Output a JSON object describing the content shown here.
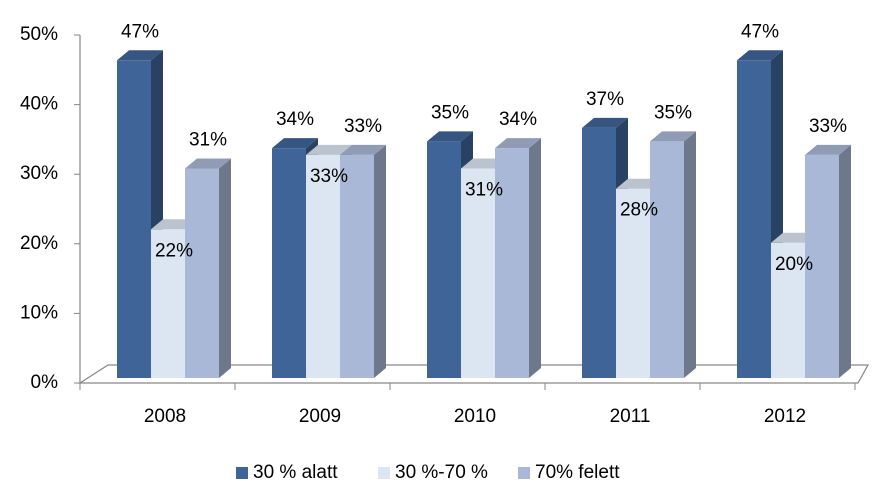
{
  "chart_data": {
    "type": "bar",
    "categories": [
      "2008",
      "2009",
      "2010",
      "2011",
      "2012"
    ],
    "series": [
      {
        "name": "30 % alatt",
        "color": "#3f6497",
        "values": [
          47,
          34,
          35,
          37,
          47
        ],
        "value_labels": [
          "47%",
          "34%",
          "35%",
          "37%",
          "47%"
        ]
      },
      {
        "name": "30 %-70 %",
        "color": "#dce6f2",
        "values": [
          22,
          33,
          31,
          28,
          20
        ],
        "value_labels": [
          "22%",
          "33%",
          "31%",
          "28%",
          "20%"
        ]
      },
      {
        "name": "70% felett",
        "color": "#a9b8d6",
        "values": [
          31,
          33,
          34,
          35,
          33
        ],
        "value_labels": [
          "31%",
          "33%",
          "34%",
          "35%",
          "33%"
        ]
      }
    ],
    "ylim": [
      0,
      50
    ],
    "yticks": [
      {
        "value": 0,
        "label": "0%"
      },
      {
        "value": 10,
        "label": "10%"
      },
      {
        "value": 20,
        "label": "20%"
      },
      {
        "value": 30,
        "label": "30%"
      },
      {
        "value": 40,
        "label": "40%"
      },
      {
        "value": 50,
        "label": "50%"
      }
    ],
    "legend": "bottom"
  }
}
